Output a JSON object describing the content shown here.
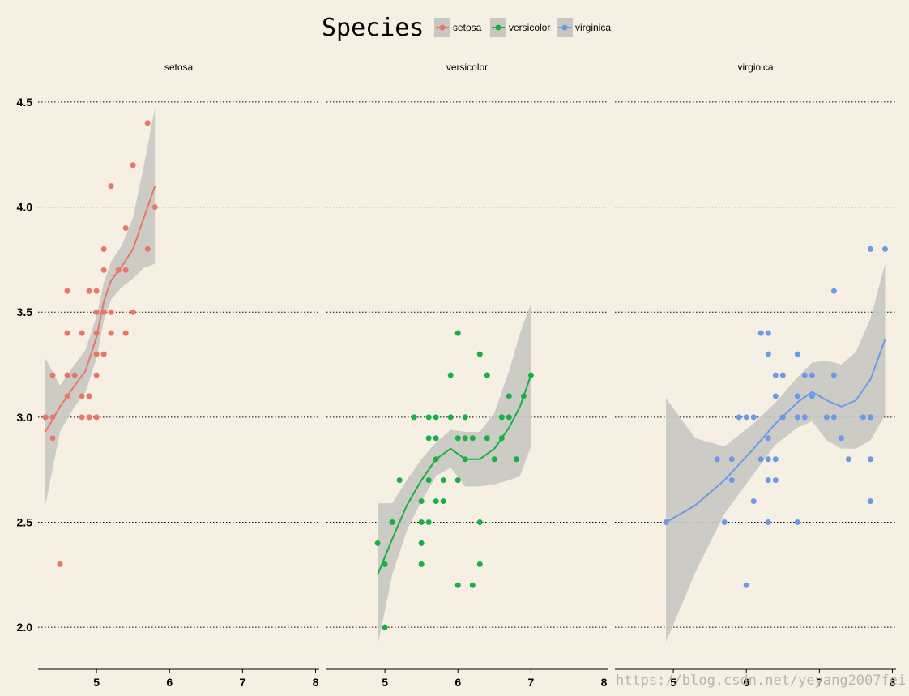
{
  "chart_data": {
    "type": "scatter",
    "title": "",
    "facet_var": "Species",
    "legend": {
      "title": "Species",
      "position": "top",
      "entries": [
        "setosa",
        "versicolor",
        "virginica"
      ]
    },
    "xlim": [
      4.2,
      8.05
    ],
    "ylim": [
      1.8,
      4.6
    ],
    "x_ticks": [
      5,
      6,
      7,
      8
    ],
    "x_tick_labels": [
      "5",
      "6",
      "7",
      "8"
    ],
    "y_ticks": [
      2.0,
      2.5,
      3.0,
      3.5,
      4.0,
      4.5
    ],
    "y_tick_labels": [
      "2.0",
      "2.5",
      "3.0",
      "3.5",
      "4.0",
      "4.5"
    ],
    "grid": "horizontal dotted",
    "smooth": "loess with confidence band",
    "colors": {
      "setosa": "#e8766d",
      "versicolor": "#16b046",
      "virginica": "#6c9ae8",
      "band": "#c9c7c1",
      "background": "#f5f0e3"
    },
    "series": [
      {
        "name": "setosa",
        "points": [
          [
            4.3,
            3.0
          ],
          [
            4.4,
            2.9
          ],
          [
            4.4,
            3.0
          ],
          [
            4.4,
            3.2
          ],
          [
            4.5,
            2.3
          ],
          [
            4.6,
            3.1
          ],
          [
            4.6,
            3.2
          ],
          [
            4.6,
            3.4
          ],
          [
            4.6,
            3.6
          ],
          [
            4.7,
            3.2
          ],
          [
            4.8,
            3.0
          ],
          [
            4.8,
            3.1
          ],
          [
            4.8,
            3.4
          ],
          [
            4.9,
            3.0
          ],
          [
            4.9,
            3.1
          ],
          [
            4.9,
            3.6
          ],
          [
            5.0,
            3.0
          ],
          [
            5.0,
            3.2
          ],
          [
            5.0,
            3.3
          ],
          [
            5.0,
            3.4
          ],
          [
            5.0,
            3.5
          ],
          [
            5.0,
            3.6
          ],
          [
            5.1,
            3.3
          ],
          [
            5.1,
            3.5
          ],
          [
            5.1,
            3.7
          ],
          [
            5.1,
            3.8
          ],
          [
            5.2,
            3.4
          ],
          [
            5.2,
            3.5
          ],
          [
            5.2,
            4.1
          ],
          [
            5.3,
            3.7
          ],
          [
            5.4,
            3.4
          ],
          [
            5.4,
            3.7
          ],
          [
            5.4,
            3.9
          ],
          [
            5.5,
            3.5
          ],
          [
            5.5,
            4.2
          ],
          [
            5.7,
            3.8
          ],
          [
            5.7,
            4.4
          ],
          [
            5.8,
            4.0
          ]
        ],
        "smooth": [
          [
            4.3,
            2.93
          ],
          [
            4.5,
            3.05
          ],
          [
            4.7,
            3.15
          ],
          [
            4.85,
            3.22
          ],
          [
            5.0,
            3.38
          ],
          [
            5.1,
            3.55
          ],
          [
            5.2,
            3.65
          ],
          [
            5.35,
            3.72
          ],
          [
            5.5,
            3.8
          ],
          [
            5.65,
            3.95
          ],
          [
            5.8,
            4.1
          ]
        ],
        "band_upper": [
          [
            4.3,
            3.28
          ],
          [
            4.5,
            3.15
          ],
          [
            4.7,
            3.25
          ],
          [
            4.85,
            3.32
          ],
          [
            5.0,
            3.48
          ],
          [
            5.1,
            3.64
          ],
          [
            5.2,
            3.74
          ],
          [
            5.35,
            3.82
          ],
          [
            5.5,
            3.95
          ],
          [
            5.65,
            4.2
          ],
          [
            5.8,
            4.47
          ]
        ],
        "band_lower": [
          [
            4.3,
            2.58
          ],
          [
            4.5,
            2.93
          ],
          [
            4.7,
            3.05
          ],
          [
            4.85,
            3.12
          ],
          [
            5.0,
            3.28
          ],
          [
            5.1,
            3.46
          ],
          [
            5.2,
            3.56
          ],
          [
            5.35,
            3.62
          ],
          [
            5.5,
            3.66
          ],
          [
            5.65,
            3.71
          ],
          [
            5.8,
            3.73
          ]
        ]
      },
      {
        "name": "versicolor",
        "points": [
          [
            4.9,
            2.4
          ],
          [
            5.0,
            2.0
          ],
          [
            5.0,
            2.3
          ],
          [
            5.1,
            2.5
          ],
          [
            5.2,
            2.7
          ],
          [
            5.4,
            3.0
          ],
          [
            5.5,
            2.3
          ],
          [
            5.5,
            2.4
          ],
          [
            5.5,
            2.5
          ],
          [
            5.5,
            2.6
          ],
          [
            5.6,
            2.5
          ],
          [
            5.6,
            2.7
          ],
          [
            5.6,
            2.9
          ],
          [
            5.6,
            3.0
          ],
          [
            5.7,
            2.6
          ],
          [
            5.7,
            2.8
          ],
          [
            5.7,
            2.9
          ],
          [
            5.7,
            3.0
          ],
          [
            5.8,
            2.6
          ],
          [
            5.8,
            2.7
          ],
          [
            5.9,
            3.0
          ],
          [
            5.9,
            3.2
          ],
          [
            6.0,
            2.2
          ],
          [
            6.0,
            2.7
          ],
          [
            6.0,
            2.9
          ],
          [
            6.0,
            3.4
          ],
          [
            6.1,
            2.8
          ],
          [
            6.1,
            2.9
          ],
          [
            6.1,
            3.0
          ],
          [
            6.2,
            2.2
          ],
          [
            6.2,
            2.9
          ],
          [
            6.3,
            2.3
          ],
          [
            6.3,
            2.5
          ],
          [
            6.3,
            3.3
          ],
          [
            6.4,
            2.9
          ],
          [
            6.4,
            3.2
          ],
          [
            6.5,
            2.8
          ],
          [
            6.6,
            2.9
          ],
          [
            6.6,
            3.0
          ],
          [
            6.7,
            3.0
          ],
          [
            6.7,
            3.1
          ],
          [
            6.8,
            2.8
          ],
          [
            6.9,
            3.1
          ],
          [
            7.0,
            3.2
          ]
        ],
        "smooth": [
          [
            4.9,
            2.25
          ],
          [
            5.1,
            2.42
          ],
          [
            5.3,
            2.58
          ],
          [
            5.5,
            2.7
          ],
          [
            5.7,
            2.8
          ],
          [
            5.9,
            2.85
          ],
          [
            6.1,
            2.8
          ],
          [
            6.3,
            2.8
          ],
          [
            6.5,
            2.85
          ],
          [
            6.7,
            2.95
          ],
          [
            6.85,
            3.05
          ],
          [
            7.0,
            3.2
          ]
        ],
        "band_upper": [
          [
            4.9,
            2.59
          ],
          [
            5.1,
            2.59
          ],
          [
            5.3,
            2.7
          ],
          [
            5.5,
            2.8
          ],
          [
            5.7,
            2.88
          ],
          [
            5.9,
            2.94
          ],
          [
            6.1,
            2.93
          ],
          [
            6.3,
            2.93
          ],
          [
            6.5,
            3.02
          ],
          [
            6.7,
            3.22
          ],
          [
            6.85,
            3.4
          ],
          [
            7.0,
            3.54
          ]
        ],
        "band_lower": [
          [
            4.9,
            1.91
          ],
          [
            5.1,
            2.25
          ],
          [
            5.3,
            2.46
          ],
          [
            5.5,
            2.6
          ],
          [
            5.7,
            2.72
          ],
          [
            5.9,
            2.76
          ],
          [
            6.1,
            2.67
          ],
          [
            6.3,
            2.67
          ],
          [
            6.5,
            2.68
          ],
          [
            6.7,
            2.7
          ],
          [
            6.85,
            2.72
          ],
          [
            7.0,
            2.86
          ]
        ]
      },
      {
        "name": "virginica",
        "points": [
          [
            4.9,
            2.5
          ],
          [
            5.6,
            2.8
          ],
          [
            5.7,
            2.5
          ],
          [
            5.8,
            2.7
          ],
          [
            5.8,
            2.8
          ],
          [
            5.9,
            3.0
          ],
          [
            6.0,
            2.2
          ],
          [
            6.0,
            3.0
          ],
          [
            6.1,
            2.6
          ],
          [
            6.1,
            3.0
          ],
          [
            6.2,
            2.8
          ],
          [
            6.2,
            3.4
          ],
          [
            6.3,
            2.5
          ],
          [
            6.3,
            2.7
          ],
          [
            6.3,
            2.8
          ],
          [
            6.3,
            2.9
          ],
          [
            6.3,
            3.3
          ],
          [
            6.3,
            3.4
          ],
          [
            6.4,
            2.7
          ],
          [
            6.4,
            2.8
          ],
          [
            6.4,
            3.1
          ],
          [
            6.4,
            3.2
          ],
          [
            6.5,
            3.0
          ],
          [
            6.5,
            3.2
          ],
          [
            6.7,
            2.5
          ],
          [
            6.7,
            3.0
          ],
          [
            6.7,
            3.1
          ],
          [
            6.7,
            3.3
          ],
          [
            6.8,
            3.0
          ],
          [
            6.8,
            3.2
          ],
          [
            6.9,
            3.1
          ],
          [
            6.9,
            3.2
          ],
          [
            7.1,
            3.0
          ],
          [
            7.2,
            3.0
          ],
          [
            7.2,
            3.2
          ],
          [
            7.2,
            3.6
          ],
          [
            7.3,
            2.9
          ],
          [
            7.4,
            2.8
          ],
          [
            7.6,
            3.0
          ],
          [
            7.7,
            2.6
          ],
          [
            7.7,
            2.8
          ],
          [
            7.7,
            3.0
          ],
          [
            7.7,
            3.8
          ],
          [
            7.9,
            3.8
          ]
        ],
        "smooth": [
          [
            4.9,
            2.5
          ],
          [
            5.3,
            2.58
          ],
          [
            5.7,
            2.7
          ],
          [
            6.1,
            2.85
          ],
          [
            6.4,
            2.97
          ],
          [
            6.7,
            3.07
          ],
          [
            6.9,
            3.12
          ],
          [
            7.1,
            3.08
          ],
          [
            7.3,
            3.05
          ],
          [
            7.5,
            3.08
          ],
          [
            7.7,
            3.18
          ],
          [
            7.9,
            3.37
          ]
        ],
        "band_upper": [
          [
            4.9,
            3.09
          ],
          [
            5.3,
            2.9
          ],
          [
            5.7,
            2.86
          ],
          [
            6.1,
            2.97
          ],
          [
            6.4,
            3.07
          ],
          [
            6.7,
            3.19
          ],
          [
            6.9,
            3.26
          ],
          [
            7.1,
            3.27
          ],
          [
            7.3,
            3.25
          ],
          [
            7.5,
            3.31
          ],
          [
            7.7,
            3.47
          ],
          [
            7.9,
            3.73
          ]
        ],
        "band_lower": [
          [
            4.9,
            1.93
          ],
          [
            5.3,
            2.26
          ],
          [
            5.7,
            2.54
          ],
          [
            6.1,
            2.73
          ],
          [
            6.4,
            2.87
          ],
          [
            6.7,
            2.95
          ],
          [
            6.9,
            2.98
          ],
          [
            7.1,
            2.89
          ],
          [
            7.3,
            2.85
          ],
          [
            7.5,
            2.85
          ],
          [
            7.7,
            2.89
          ],
          [
            7.9,
            3.01
          ]
        ]
      }
    ]
  },
  "watermark": "https://blog.csdn.net/yeyang2007fei"
}
